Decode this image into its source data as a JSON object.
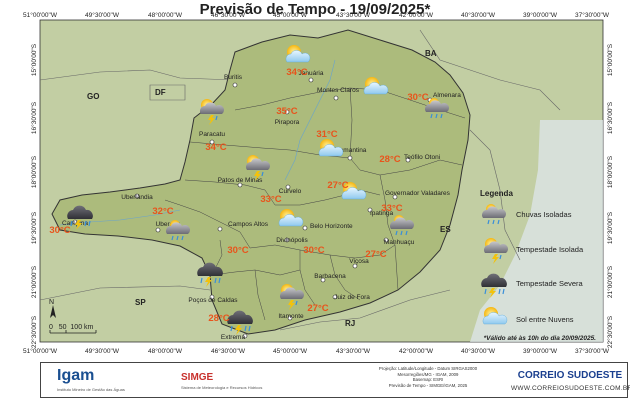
{
  "title": "Previsão de Tempo - 19/09/2025*",
  "coords_top": [
    "51°00'00\"W",
    "49°30'00\"W",
    "48°00'00\"W",
    "46°30'00\"W",
    "45°00'00\"W",
    "43°30'00\"W",
    "42°00'00\"W",
    "40°30'00\"W",
    "39°00'00\"W",
    "37°30'00\"W"
  ],
  "coords_left": [
    "15°00'00\"S",
    "16°30'00\"S",
    "18°00'00\"S",
    "19°30'00\"S",
    "21°00'00\"S",
    "22°30'00\"S"
  ],
  "states": [
    "BA",
    "GO",
    "DF",
    "ES",
    "SP",
    "RJ"
  ],
  "cities": [
    "Buritis",
    "Januária",
    "Almenara",
    "Montes Claros",
    "Paracatu",
    "Pirapora",
    "Teófilo Otoni",
    "Diamantina",
    "Patos de Minas",
    "Curvelo",
    "Uberlândia",
    "Governador Valadares",
    "Ipatinga",
    "Campina",
    "Uberaba",
    "Campos Altos",
    "Belo Horizonte",
    "Divinópolis",
    "Manhuaçu",
    "Viçosa",
    "Barbacena",
    "Poços de Caldas",
    "Juiz de Fora",
    "Itamonte",
    "Extrema"
  ],
  "temperatures": [
    "34°C",
    "30°C",
    "35°C",
    "34°C",
    "31°C",
    "28°C",
    "27°C",
    "33°C",
    "33°C",
    "32°C",
    "30°C",
    "30°C",
    "30°C",
    "27°C",
    "28°C",
    "27°C"
  ],
  "legend": {
    "title": "Legenda",
    "items": [
      {
        "label": "Chuvas Isoladas",
        "icon": "isolated-rain-icon"
      },
      {
        "label": "Tempestade Isolada",
        "icon": "isolated-storm-icon"
      },
      {
        "label": "Tempestade Severa",
        "icon": "severe-storm-icon"
      },
      {
        "label": "Sol entre Nuvens",
        "icon": "sun-clouds-icon"
      }
    ]
  },
  "scale": {
    "label": "0   50  100 km",
    "north": "N"
  },
  "note": "*Válido até às 10h do dia 20/09/2025.",
  "footer": {
    "igam": "Igam",
    "igam_sub": "Instituto Mineiro de Gestão das Águas",
    "simge": "SIMGE",
    "simge_sub": "Sistema de Meteorologia e Recursos Hídricos",
    "projection_lines": [
      "Projeção: Latitude/Longitude - Datum SIRGAS2000",
      "Mesorregiões/MG - IGAM, 2009",
      "Basemap: ESRI",
      "Previsão de Tempo - SIMGE/IGAM, 2025"
    ],
    "brand": "CORREIO SUDOESTE",
    "brand_url": "WWW.CORREIOSUDOESTE.COM.BR"
  },
  "colors": {
    "land": "#c2cea3",
    "mg": "#acbb7c",
    "border": "#444444",
    "temp": "#e8541c"
  }
}
